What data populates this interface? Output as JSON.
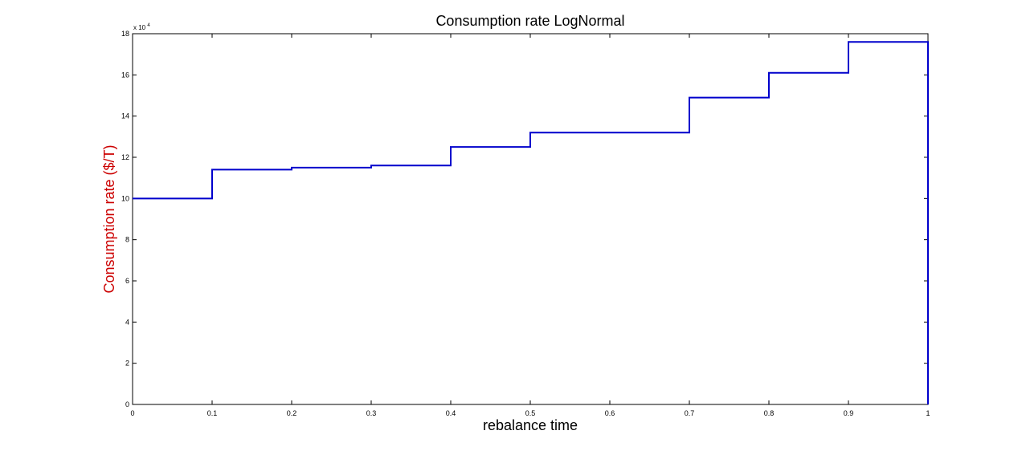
{
  "chart_data": {
    "type": "line",
    "style": "step",
    "title": "Consumption rate LogNormal",
    "xlabel": "rebalance time",
    "ylabel": "Consumption rate ($/T)",
    "ylabel_color": "#cc0000",
    "line_color": "#0000cc",
    "xlim": [
      0,
      1
    ],
    "ylim": [
      0,
      18
    ],
    "y_multiplier_base": "x 10",
    "y_multiplier_exponent": "4",
    "xticks": [
      "0",
      "0.1",
      "0.2",
      "0.3",
      "0.4",
      "0.5",
      "0.6",
      "0.7",
      "0.8",
      "0.9",
      "1"
    ],
    "yticks": [
      "0",
      "2",
      "4",
      "6",
      "8",
      "10",
      "12",
      "14",
      "16",
      "18"
    ],
    "grid": false,
    "series": [
      {
        "x": [
          0,
          0.1,
          0.2,
          0.3,
          0.4,
          0.5,
          0.6,
          0.7,
          0.8,
          0.9,
          1.0
        ],
        "y": [
          10.0,
          11.4,
          11.5,
          11.6,
          12.5,
          13.2,
          13.2,
          14.9,
          16.1,
          17.6,
          17.6
        ],
        "drop_to_zero_at_end": true
      }
    ]
  }
}
